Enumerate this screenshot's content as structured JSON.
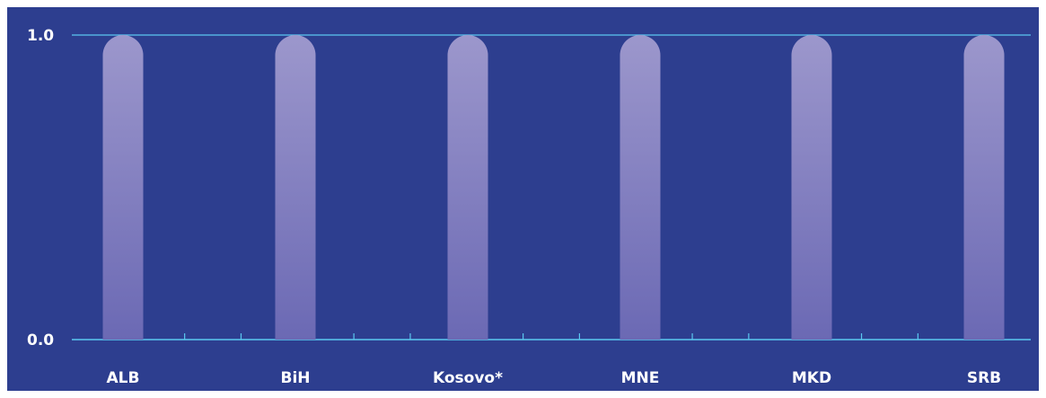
{
  "colors": {
    "background": "#2d3e8f",
    "axis": "#5bc8f0",
    "bar_top": "#9c97cc",
    "bar_bottom": "#6b69b4",
    "text": "#ffffff"
  },
  "chart_data": {
    "type": "bar",
    "categories": [
      "ALB",
      "BiH",
      "Kosovo*",
      "MNE",
      "MKD",
      "SRB"
    ],
    "values": [
      1.0,
      1.0,
      1.0,
      1.0,
      1.0,
      1.0
    ],
    "yticks": [
      "0.0",
      "1.0"
    ],
    "ylim": [
      0,
      1
    ],
    "title": "",
    "xlabel": "",
    "ylabel": "",
    "grid": false,
    "legend": "none"
  }
}
